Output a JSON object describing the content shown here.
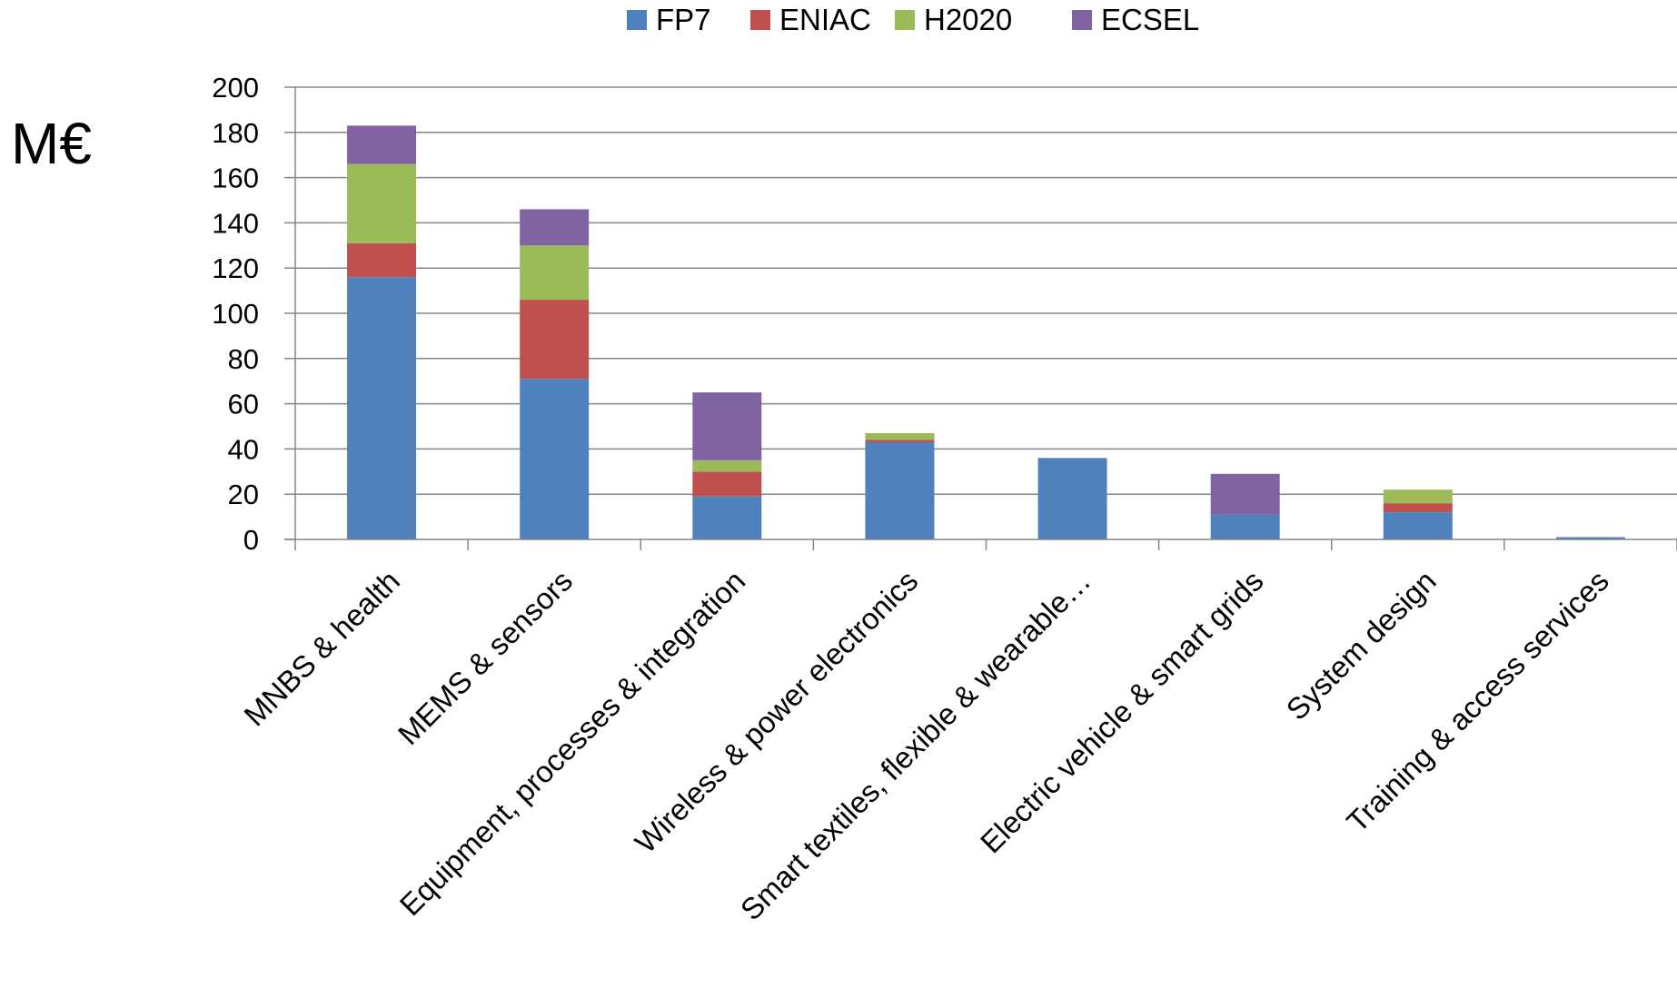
{
  "chart_data": {
    "type": "bar",
    "stacked": true,
    "title": "",
    "unit_label": "M€",
    "xlabel": "",
    "ylabel": "",
    "ylim": [
      0,
      200
    ],
    "yticks": [
      0,
      20,
      40,
      60,
      80,
      100,
      120,
      140,
      160,
      180,
      200
    ],
    "grid": true,
    "legend_position": "top-center",
    "categories": [
      "MNBS & health",
      "MEMS & sensors",
      "Equipment, processes & integration",
      "Wireless & power electronics",
      "Smart textiles, flexible & wearable…",
      "Electric vehicle & smart grids",
      "System design",
      "Training & access services"
    ],
    "series": [
      {
        "name": "FP7",
        "color": "#4F81BD",
        "values": [
          116,
          71,
          19,
          43,
          36,
          11,
          12,
          1
        ]
      },
      {
        "name": "ENIAC",
        "color": "#C0504D",
        "values": [
          15,
          35,
          11,
          1,
          0,
          0,
          4,
          0
        ]
      },
      {
        "name": "H2020",
        "color": "#9BBB59",
        "values": [
          35,
          24,
          5,
          3,
          0,
          0,
          6,
          0
        ]
      },
      {
        "name": "ECSEL",
        "color": "#8064A2",
        "values": [
          17,
          16,
          30,
          0,
          0,
          18,
          0,
          0
        ]
      }
    ]
  }
}
